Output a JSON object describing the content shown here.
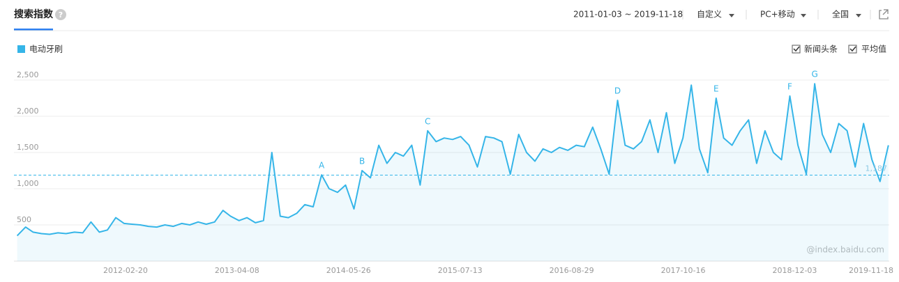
{
  "header": {
    "title": "搜索指数",
    "help": "?",
    "date_range": "2011-01-03 ~ 2019-11-18",
    "custom": "自定义",
    "device": "PC+移动",
    "region": "全国"
  },
  "options": {
    "news": "新闻头条",
    "average": "平均值"
  },
  "watermark": "@index.baidu.com",
  "chart_data": {
    "type": "line",
    "x": [
      "2011-01",
      "2011-02",
      "2011-03",
      "2011-04",
      "2011-05",
      "2011-06",
      "2011-07",
      "2011-08",
      "2011-09",
      "2011-10",
      "2011-11",
      "2011-12",
      "2012-01",
      "2012-02",
      "2012-03",
      "2012-04",
      "2012-05",
      "2012-06",
      "2012-07",
      "2012-08",
      "2012-09",
      "2012-10",
      "2012-11",
      "2012-12",
      "2013-01",
      "2013-02",
      "2013-03",
      "2013-04",
      "2013-05",
      "2013-06",
      "2013-07",
      "2013-08",
      "2013-09",
      "2013-10",
      "2013-11",
      "2013-12",
      "2014-01",
      "2014-02",
      "2014-03",
      "2014-04",
      "2014-05",
      "2014-06",
      "2014-07",
      "2014-08",
      "2014-09",
      "2014-10",
      "2014-11",
      "2014-12",
      "2015-01",
      "2015-02",
      "2015-03",
      "2015-04",
      "2015-05",
      "2015-06",
      "2015-07",
      "2015-08",
      "2015-09",
      "2015-10",
      "2015-11",
      "2015-12",
      "2016-01",
      "2016-02",
      "2016-03",
      "2016-04",
      "2016-05",
      "2016-06",
      "2016-07",
      "2016-08",
      "2016-09",
      "2016-10",
      "2016-11",
      "2016-12",
      "2017-01",
      "2017-02",
      "2017-03",
      "2017-04",
      "2017-05",
      "2017-06",
      "2017-07",
      "2017-08",
      "2017-09",
      "2017-10",
      "2017-11",
      "2017-12",
      "2018-01",
      "2018-02",
      "2018-03",
      "2018-04",
      "2018-05",
      "2018-06",
      "2018-07",
      "2018-08",
      "2018-09",
      "2018-10",
      "2018-11",
      "2018-12",
      "2019-01",
      "2019-02",
      "2019-03",
      "2019-04",
      "2019-05",
      "2019-06",
      "2019-07",
      "2019-08",
      "2019-09",
      "2019-10",
      "2019-11"
    ],
    "series": [
      {
        "name": "电动牙刷",
        "color": "#35b5e8",
        "values": [
          350,
          470,
          400,
          380,
          370,
          390,
          380,
          400,
          390,
          540,
          400,
          430,
          600,
          520,
          510,
          500,
          480,
          470,
          500,
          480,
          520,
          500,
          540,
          510,
          540,
          700,
          620,
          560,
          600,
          530,
          560,
          1500,
          620,
          600,
          660,
          780,
          750,
          1190,
          1000,
          950,
          1050,
          720,
          1250,
          1150,
          1600,
          1350,
          1500,
          1450,
          1600,
          1050,
          1800,
          1650,
          1700,
          1680,
          1720,
          1600,
          1300,
          1720,
          1700,
          1650,
          1200,
          1750,
          1500,
          1380,
          1550,
          1500,
          1570,
          1530,
          1600,
          1580,
          1850,
          1550,
          1200,
          2220,
          1600,
          1550,
          1650,
          1950,
          1500,
          2050,
          1350,
          1700,
          2430,
          1550,
          1220,
          2250,
          1700,
          1600,
          1800,
          1950,
          1350,
          1800,
          1500,
          1400,
          2280,
          1600,
          1200,
          2450,
          1750,
          1500,
          1900,
          1800,
          1300,
          1900,
          1400,
          1100,
          1600
        ]
      }
    ],
    "xlim": [
      "2011-01-03",
      "2019-11-18"
    ],
    "xticks": [
      "2012-02-20",
      "2013-04-08",
      "2014-05-26",
      "2015-07-13",
      "2016-08-29",
      "2017-10-16",
      "2018-12-03",
      "2019-11-18"
    ],
    "ylim": [
      0,
      2500
    ],
    "yticks": [
      500,
      {
        "value": 1000,
        "label": "1,000"
      },
      {
        "value": 1500,
        "label": "1,500"
      },
      {
        "value": 2000,
        "label": "2,000"
      },
      {
        "value": 2500,
        "label": "2,500"
      }
    ],
    "grid": true,
    "average": {
      "value": 1187,
      "label": "1,187"
    },
    "annotations": [
      {
        "label": "A",
        "x": "2014-02",
        "value": 1190
      },
      {
        "label": "B",
        "x": "2014-07",
        "value": 1250
      },
      {
        "label": "C",
        "x": "2015-03",
        "value": 1800
      },
      {
        "label": "D",
        "x": "2017-02",
        "value": 2220
      },
      {
        "label": "E",
        "x": "2018-02",
        "value": 2250
      },
      {
        "label": "F",
        "x": "2018-11",
        "value": 2280
      },
      {
        "label": "G",
        "x": "2019-02",
        "value": 2450
      }
    ]
  }
}
